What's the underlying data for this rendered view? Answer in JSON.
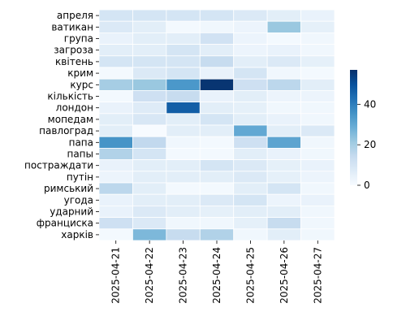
{
  "chart_data": {
    "type": "heatmap",
    "title": "",
    "xlabel": "",
    "ylabel": "",
    "rows": [
      "апреля",
      "ватикан",
      "група",
      "загроза",
      "квітень",
      "крим",
      "курс",
      "кількість",
      "лондон",
      "мопедам",
      "павлоград",
      "папа",
      "папы",
      "постраждати",
      "путін",
      "римський",
      "угода",
      "ударний",
      "франциска",
      "харків"
    ],
    "columns": [
      "2025-04-21",
      "2025-04-22",
      "2025-04-23",
      "2025-04-24",
      "2025-04-25",
      "2025-04-26",
      "2025-04-27"
    ],
    "values": [
      [
        10,
        10,
        10,
        10,
        8,
        6,
        4
      ],
      [
        8,
        6,
        1,
        2,
        3,
        22,
        5
      ],
      [
        4,
        6,
        6,
        11,
        3,
        1,
        2
      ],
      [
        6,
        6,
        10,
        6,
        3,
        4,
        2
      ],
      [
        10,
        10,
        10,
        14,
        6,
        8,
        5
      ],
      [
        1,
        8,
        10,
        4,
        10,
        2,
        1
      ],
      [
        20,
        22,
        34,
        56,
        12,
        16,
        6
      ],
      [
        1,
        12,
        14,
        4,
        6,
        3,
        3
      ],
      [
        4,
        7,
        47,
        6,
        5,
        2,
        2
      ],
      [
        6,
        9,
        6,
        10,
        6,
        4,
        2
      ],
      [
        6,
        0,
        6,
        6,
        30,
        6,
        8
      ],
      [
        35,
        15,
        2,
        1,
        12,
        31,
        2
      ],
      [
        18,
        10,
        1,
        1,
        6,
        4,
        2
      ],
      [
        4,
        6,
        6,
        10,
        8,
        5,
        4
      ],
      [
        3,
        6,
        6,
        6,
        8,
        5,
        3
      ],
      [
        16,
        6,
        1,
        1,
        6,
        10,
        2
      ],
      [
        4,
        6,
        6,
        8,
        10,
        3,
        4
      ],
      [
        4,
        8,
        6,
        5,
        6,
        6,
        2
      ],
      [
        12,
        8,
        2,
        2,
        5,
        14,
        2
      ],
      [
        1,
        26,
        14,
        18,
        2,
        6,
        2
      ]
    ],
    "colorbar": {
      "ticks": [
        0,
        20,
        40
      ],
      "min": 0,
      "max": 57,
      "colormap": "Blues"
    },
    "grid": false,
    "legend": "colorbar-right"
  }
}
